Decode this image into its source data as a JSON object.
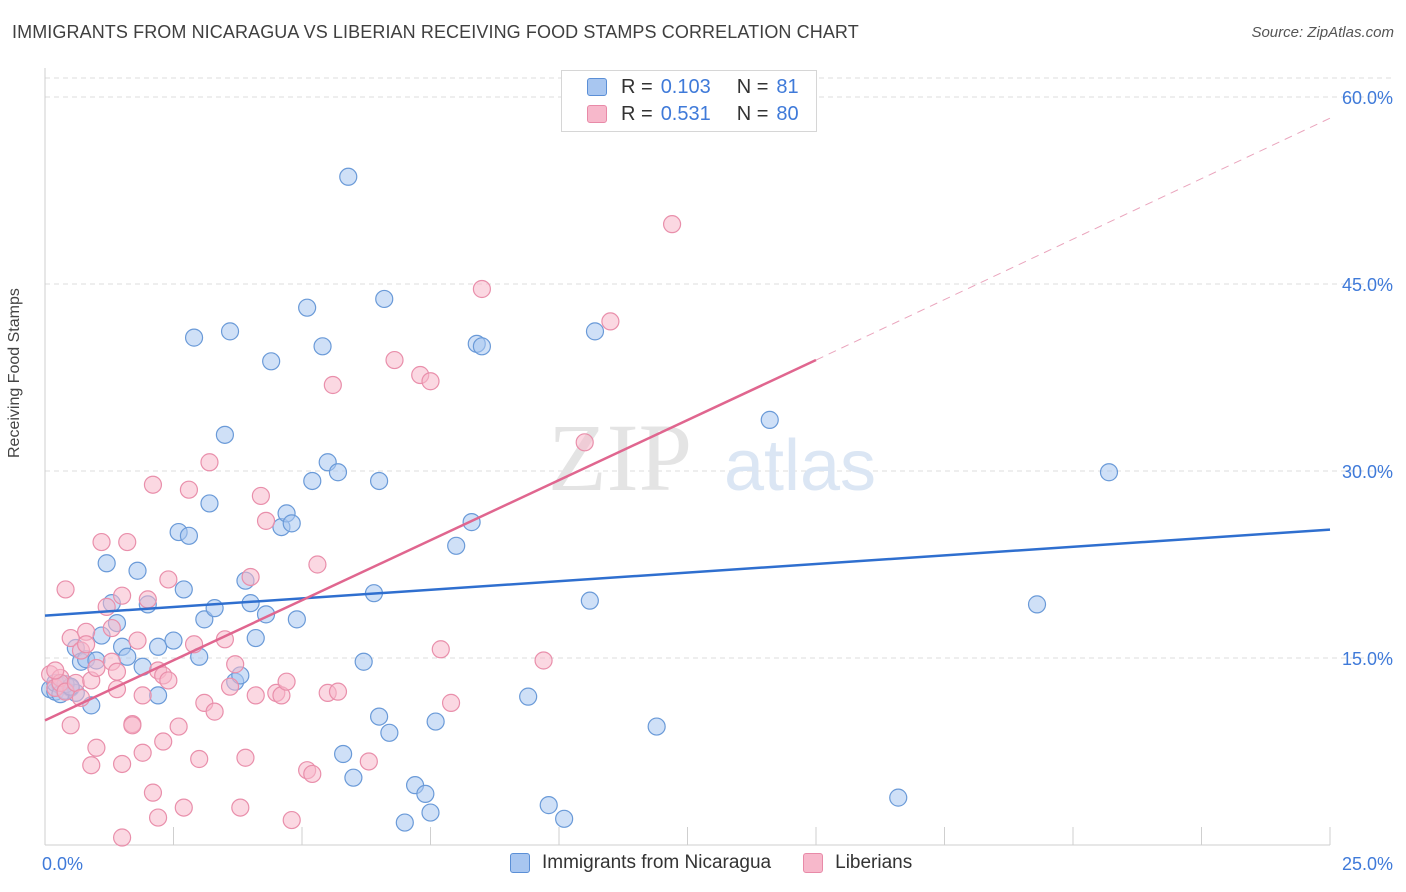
{
  "title": "IMMIGRANTS FROM NICARAGUA VS LIBERIAN RECEIVING FOOD STAMPS CORRELATION CHART",
  "source": "Source: ZipAtlas.com",
  "watermark": {
    "zip": "ZIP",
    "atlas": "atlas"
  },
  "legend": {
    "r_label": "R =",
    "n_label": "N =",
    "rows": [
      {
        "r": "0.103",
        "n": "81",
        "color": "#a8c6f0",
        "stroke": "#5b8fd6"
      },
      {
        "r": "0.531",
        "n": "80",
        "color": "#f7b8cb",
        "stroke": "#e88aa8"
      }
    ]
  },
  "bottom_legend": [
    "Immigrants from Nicaragua",
    "Liberians"
  ],
  "colors": {
    "blue_fill": "#a8c6f0",
    "blue_stroke": "#6a9ad8",
    "blue_line": "#2f6fcf",
    "pink_fill": "#f7b8cb",
    "pink_stroke": "#e98fab",
    "pink_line": "#e0668f",
    "tick_label": "#3f7ad9",
    "grid": "#dcdcdc"
  },
  "chart_data": {
    "type": "scatter",
    "title": "IMMIGRANTS FROM NICARAGUA VS LIBERIAN RECEIVING FOOD STAMPS CORRELATION CHART",
    "xlabel": "",
    "ylabel": "Receiving Food Stamps",
    "xlim": [
      0,
      25
    ],
    "ylim": [
      0,
      60
    ],
    "x_tick_labels": [
      "0.0%",
      "25.0%"
    ],
    "y_ticks": [
      15,
      30,
      45,
      60
    ],
    "y_tick_labels": [
      "15.0%",
      "30.0%",
      "45.0%",
      "60.0%"
    ],
    "grid": true,
    "series": [
      {
        "name": "Immigrants from Nicaragua",
        "points": [
          [
            0.1,
            12.5
          ],
          [
            0.2,
            12.3
          ],
          [
            0.3,
            12.8
          ],
          [
            0.4,
            12.4
          ],
          [
            0.5,
            12.6
          ],
          [
            0.6,
            12.2
          ],
          [
            0.2,
            13.0
          ],
          [
            0.3,
            12.1
          ],
          [
            0.6,
            15.8
          ],
          [
            0.7,
            14.7
          ],
          [
            0.8,
            14.9
          ],
          [
            0.9,
            11.2
          ],
          [
            1.0,
            14.8
          ],
          [
            1.1,
            16.8
          ],
          [
            1.2,
            22.6
          ],
          [
            1.3,
            19.4
          ],
          [
            1.4,
            17.8
          ],
          [
            1.5,
            15.9
          ],
          [
            1.6,
            15.1
          ],
          [
            1.8,
            22.0
          ],
          [
            1.9,
            14.3
          ],
          [
            2.0,
            19.3
          ],
          [
            2.2,
            15.9
          ],
          [
            2.2,
            12.0
          ],
          [
            2.5,
            16.4
          ],
          [
            2.6,
            25.1
          ],
          [
            2.7,
            20.5
          ],
          [
            2.8,
            24.8
          ],
          [
            2.9,
            40.7
          ],
          [
            3.0,
            15.1
          ],
          [
            3.1,
            18.1
          ],
          [
            3.2,
            27.4
          ],
          [
            3.3,
            19.0
          ],
          [
            3.5,
            32.9
          ],
          [
            3.6,
            41.2
          ],
          [
            3.7,
            13.1
          ],
          [
            3.8,
            13.6
          ],
          [
            3.9,
            21.2
          ],
          [
            4.0,
            19.4
          ],
          [
            4.1,
            16.6
          ],
          [
            4.3,
            18.5
          ],
          [
            4.4,
            38.8
          ],
          [
            4.6,
            25.5
          ],
          [
            4.7,
            26.6
          ],
          [
            4.8,
            25.8
          ],
          [
            4.9,
            18.1
          ],
          [
            5.1,
            43.1
          ],
          [
            5.2,
            29.2
          ],
          [
            5.4,
            40.0
          ],
          [
            5.5,
            30.7
          ],
          [
            5.7,
            29.9
          ],
          [
            5.8,
            7.3
          ],
          [
            5.9,
            53.6
          ],
          [
            6.0,
            5.4
          ],
          [
            6.2,
            14.7
          ],
          [
            6.4,
            20.2
          ],
          [
            6.5,
            10.3
          ],
          [
            6.5,
            29.2
          ],
          [
            6.6,
            43.8
          ],
          [
            6.7,
            9.0
          ],
          [
            7.0,
            1.8
          ],
          [
            7.2,
            4.8
          ],
          [
            7.4,
            4.1
          ],
          [
            7.5,
            2.6
          ],
          [
            7.6,
            9.9
          ],
          [
            8.0,
            24.0
          ],
          [
            8.3,
            25.9
          ],
          [
            8.4,
            40.2
          ],
          [
            8.5,
            40.0
          ],
          [
            9.4,
            11.9
          ],
          [
            9.8,
            3.2
          ],
          [
            10.1,
            2.1
          ],
          [
            10.6,
            19.6
          ],
          [
            10.7,
            41.2
          ],
          [
            11.9,
            9.5
          ],
          [
            14.1,
            34.1
          ],
          [
            16.6,
            3.8
          ],
          [
            19.3,
            19.3
          ],
          [
            20.7,
            29.9
          ],
          [
            0.4,
            12.9
          ],
          [
            0.5,
            12.7
          ]
        ]
      },
      {
        "name": "Liberians",
        "points": [
          [
            0.1,
            13.7
          ],
          [
            0.2,
            12.6
          ],
          [
            0.3,
            13.4
          ],
          [
            0.3,
            13.0
          ],
          [
            0.4,
            12.3
          ],
          [
            0.4,
            20.5
          ],
          [
            0.5,
            16.6
          ],
          [
            0.5,
            9.6
          ],
          [
            0.6,
            13.0
          ],
          [
            0.7,
            11.8
          ],
          [
            0.7,
            15.6
          ],
          [
            0.8,
            17.1
          ],
          [
            0.8,
            16.1
          ],
          [
            0.9,
            6.4
          ],
          [
            0.9,
            13.2
          ],
          [
            1.0,
            7.8
          ],
          [
            1.0,
            14.2
          ],
          [
            1.1,
            24.3
          ],
          [
            1.2,
            19.1
          ],
          [
            1.3,
            17.4
          ],
          [
            1.3,
            14.7
          ],
          [
            1.4,
            12.5
          ],
          [
            1.4,
            13.9
          ],
          [
            1.5,
            20.0
          ],
          [
            1.5,
            6.5
          ],
          [
            1.6,
            24.3
          ],
          [
            1.7,
            9.7
          ],
          [
            1.7,
            9.6
          ],
          [
            1.8,
            16.4
          ],
          [
            1.9,
            7.4
          ],
          [
            1.9,
            12.0
          ],
          [
            2.0,
            19.7
          ],
          [
            2.1,
            28.9
          ],
          [
            2.1,
            4.2
          ],
          [
            2.2,
            14.0
          ],
          [
            2.2,
            2.2
          ],
          [
            2.3,
            13.6
          ],
          [
            2.3,
            8.3
          ],
          [
            2.4,
            13.2
          ],
          [
            2.4,
            21.3
          ],
          [
            2.6,
            9.5
          ],
          [
            2.7,
            3.0
          ],
          [
            2.8,
            28.5
          ],
          [
            2.9,
            16.1
          ],
          [
            3.0,
            6.9
          ],
          [
            3.1,
            11.4
          ],
          [
            3.2,
            30.7
          ],
          [
            3.3,
            10.7
          ],
          [
            3.5,
            16.5
          ],
          [
            3.6,
            12.7
          ],
          [
            3.7,
            14.5
          ],
          [
            3.8,
            3.0
          ],
          [
            3.9,
            7.0
          ],
          [
            4.0,
            21.5
          ],
          [
            4.1,
            12.0
          ],
          [
            4.2,
            28.0
          ],
          [
            4.3,
            26.0
          ],
          [
            4.5,
            12.2
          ],
          [
            4.6,
            12.0
          ],
          [
            4.7,
            13.1
          ],
          [
            4.8,
            2.0
          ],
          [
            5.1,
            6.0
          ],
          [
            5.2,
            5.7
          ],
          [
            5.3,
            22.5
          ],
          [
            5.5,
            12.2
          ],
          [
            5.6,
            36.9
          ],
          [
            5.7,
            12.3
          ],
          [
            6.3,
            6.7
          ],
          [
            6.8,
            38.9
          ],
          [
            7.3,
            37.7
          ],
          [
            7.5,
            37.2
          ],
          [
            7.7,
            15.7
          ],
          [
            7.9,
            11.4
          ],
          [
            8.5,
            44.6
          ],
          [
            9.7,
            14.8
          ],
          [
            10.5,
            32.3
          ],
          [
            11.0,
            42.0
          ],
          [
            12.2,
            49.8
          ],
          [
            1.5,
            0.6
          ],
          [
            0.2,
            14.0
          ]
        ]
      }
    ],
    "trend_lines": [
      {
        "series": "Immigrants from Nicaragua",
        "x": [
          0,
          25
        ],
        "y": [
          18.4,
          25.3
        ],
        "style": "solid"
      },
      {
        "series": "Liberians",
        "x": [
          0,
          15
        ],
        "y": [
          10.0,
          38.9
        ],
        "style": "solid"
      },
      {
        "series": "Liberians",
        "x": [
          15,
          25
        ],
        "y": [
          38.9,
          58.3
        ],
        "style": "dashed"
      }
    ]
  }
}
